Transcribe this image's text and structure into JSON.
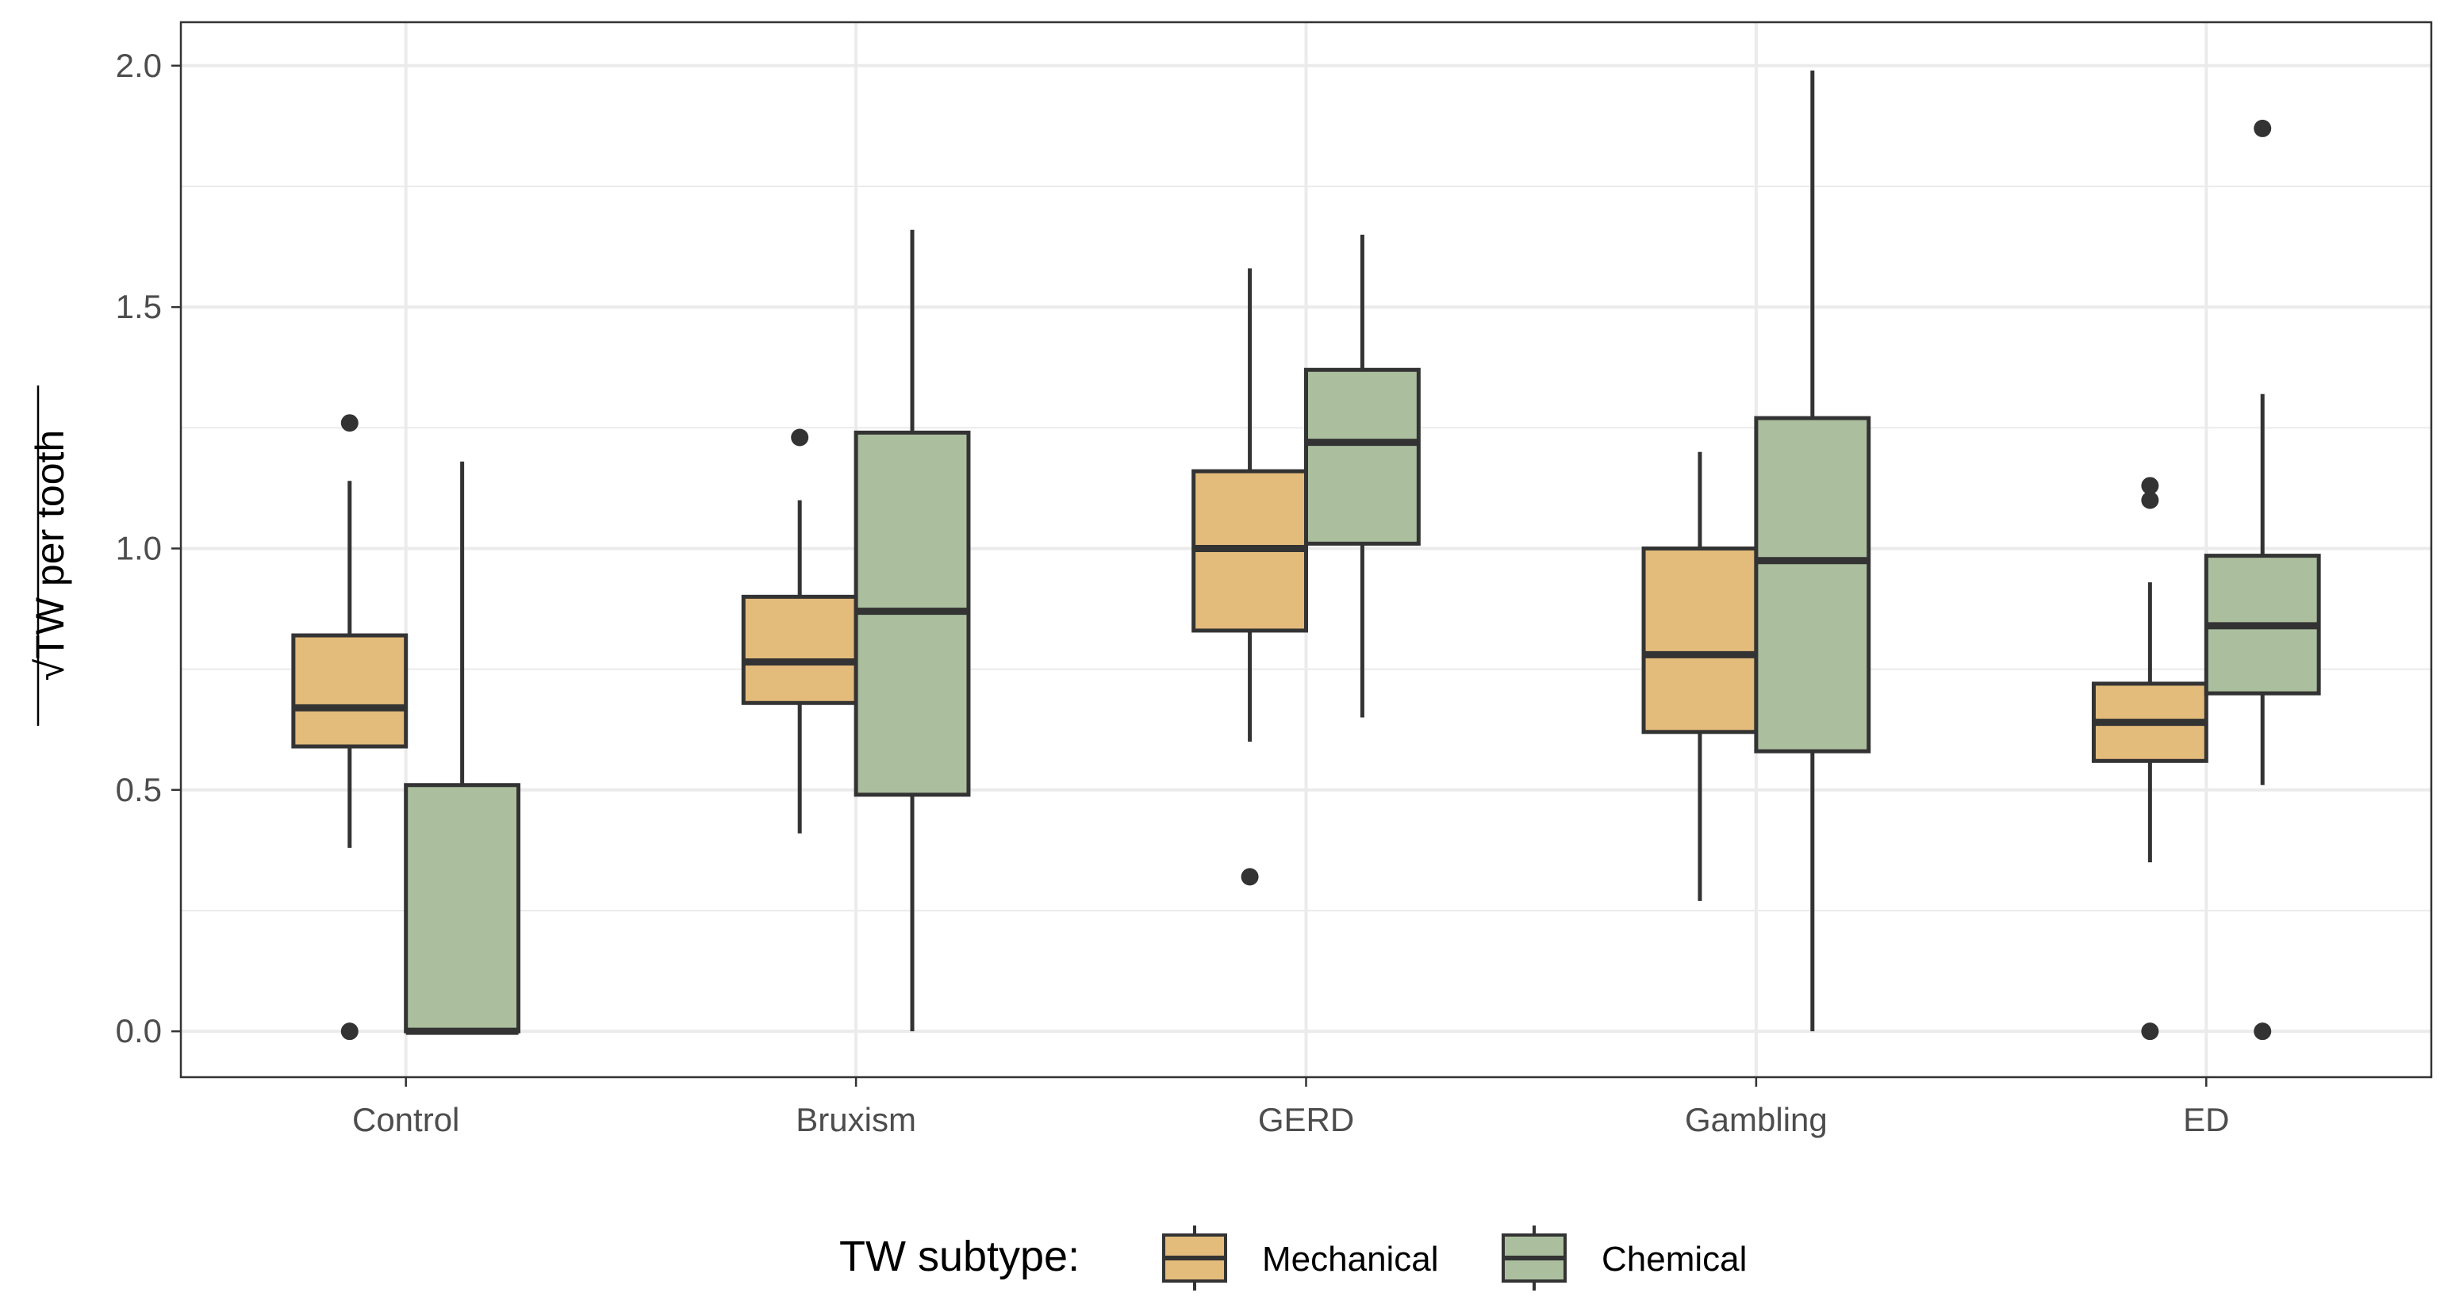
{
  "chart_data": {
    "type": "boxplot",
    "title": "",
    "xlabel": "",
    "ylabel": "TW per tooth",
    "ylabel_symbol": "√",
    "ylim": [
      -0.095,
      2.09
    ],
    "yticks": [
      0.0,
      0.5,
      1.0,
      1.5,
      2.0
    ],
    "ytick_labels": [
      "0.0",
      "0.5",
      "1.0",
      "1.5",
      "2.0"
    ],
    "categories": [
      "Control",
      "Bruxism",
      "GERD",
      "Gambling",
      "ED"
    ],
    "grid": true,
    "legend": {
      "title": "TW subtype:",
      "position": "bottom"
    },
    "series": [
      {
        "name": "Mechanical",
        "color": "#e3bb7b",
        "boxes": [
          {
            "category": "Control",
            "q1": 0.59,
            "median": 0.67,
            "q3": 0.82,
            "whisker_low": 0.38,
            "whisker_high": 1.14,
            "outliers": [
              1.26,
              0.0
            ]
          },
          {
            "category": "Bruxism",
            "q1": 0.68,
            "median": 0.765,
            "q3": 0.9,
            "whisker_low": 0.41,
            "whisker_high": 1.1,
            "outliers": [
              1.23
            ]
          },
          {
            "category": "GERD",
            "q1": 0.83,
            "median": 1.0,
            "q3": 1.16,
            "whisker_low": 0.6,
            "whisker_high": 1.58,
            "outliers": [
              0.32
            ]
          },
          {
            "category": "Gambling",
            "q1": 0.62,
            "median": 0.78,
            "q3": 1.0,
            "whisker_low": 0.27,
            "whisker_high": 1.2,
            "outliers": []
          },
          {
            "category": "ED",
            "q1": 0.56,
            "median": 0.64,
            "q3": 0.72,
            "whisker_low": 0.35,
            "whisker_high": 0.93,
            "outliers": [
              1.13,
              1.1,
              0.0
            ]
          }
        ]
      },
      {
        "name": "Chemical",
        "color": "#abbf9f",
        "boxes": [
          {
            "category": "Control",
            "q1": 0.0,
            "median": 0.0,
            "q3": 0.51,
            "whisker_low": 0.0,
            "whisker_high": 1.18,
            "outliers": []
          },
          {
            "category": "Bruxism",
            "q1": 0.49,
            "median": 0.87,
            "q3": 1.24,
            "whisker_low": 0.0,
            "whisker_high": 1.66,
            "outliers": []
          },
          {
            "category": "GERD",
            "q1": 1.01,
            "median": 1.22,
            "q3": 1.37,
            "whisker_low": 0.65,
            "whisker_high": 1.65,
            "outliers": []
          },
          {
            "category": "Gambling",
            "q1": 0.58,
            "median": 0.975,
            "q3": 1.27,
            "whisker_low": 0.0,
            "whisker_high": 1.99,
            "outliers": []
          },
          {
            "category": "ED",
            "q1": 0.7,
            "median": 0.84,
            "q3": 0.985,
            "whisker_low": 0.51,
            "whisker_high": 1.32,
            "outliers": [
              1.87,
              0.0
            ]
          }
        ]
      }
    ]
  }
}
